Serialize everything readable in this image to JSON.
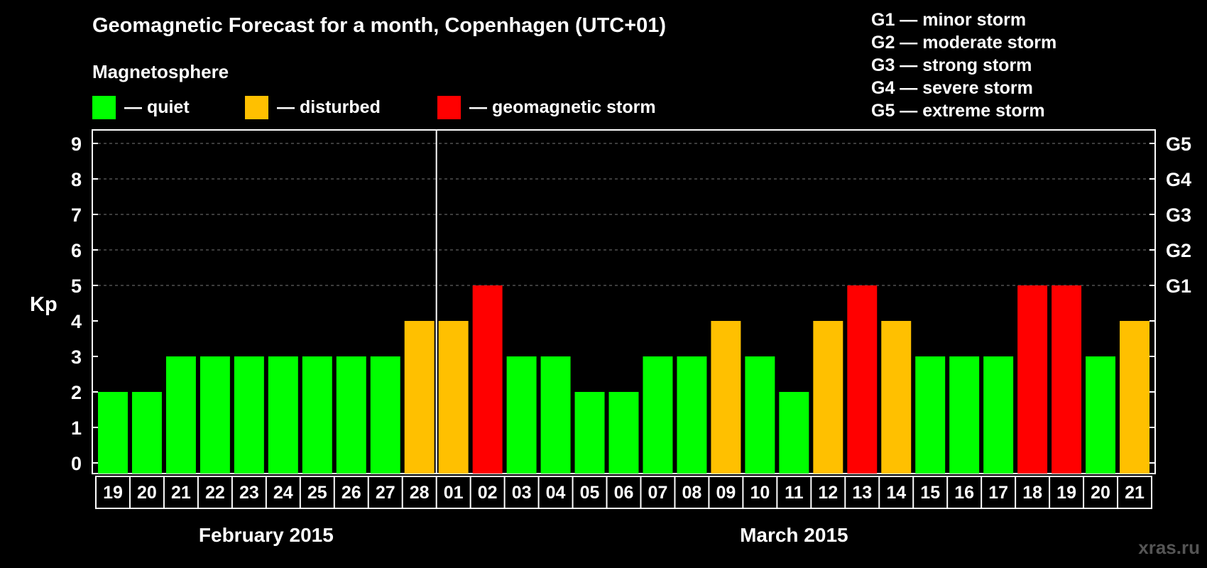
{
  "title": "Geomagnetic Forecast for a month, Copenhagen (UTC+01)",
  "magnetosphere": {
    "title": "Magnetosphere",
    "items": [
      {
        "label": "— quiet",
        "color": "#00ff00"
      },
      {
        "label": "— disturbed",
        "color": "#ffc000"
      },
      {
        "label": "— geomagnetic storm",
        "color": "#ff0000"
      }
    ]
  },
  "storm_legend": [
    "G1 — minor storm",
    "G2 — moderate storm",
    "G3 — strong storm",
    "G4 — severe storm",
    "G5 — extreme storm"
  ],
  "watermark": "xras.ru",
  "chart_data": {
    "type": "bar",
    "ylabel": "Kp",
    "ylim": [
      0,
      9
    ],
    "yticks": [
      "0",
      "1",
      "2",
      "3",
      "4",
      "5",
      "6",
      "7",
      "8",
      "9"
    ],
    "right_ticks": [
      {
        "kp": 5,
        "label": "G1"
      },
      {
        "kp": 6,
        "label": "G2"
      },
      {
        "kp": 7,
        "label": "G3"
      },
      {
        "kp": 8,
        "label": "G4"
      },
      {
        "kp": 9,
        "label": "G5"
      }
    ],
    "grid": "dashed horizontal at Kp 5-9",
    "categories": [
      "19",
      "20",
      "21",
      "22",
      "23",
      "24",
      "25",
      "26",
      "27",
      "28",
      "01",
      "02",
      "03",
      "04",
      "05",
      "06",
      "07",
      "08",
      "09",
      "10",
      "11",
      "12",
      "13",
      "14",
      "15",
      "16",
      "17",
      "18",
      "19",
      "20",
      "21"
    ],
    "values": [
      2,
      2,
      3,
      3,
      3,
      3,
      3,
      3,
      3,
      4,
      4,
      5,
      3,
      3,
      2,
      2,
      3,
      3,
      4,
      3,
      2,
      4,
      5,
      4,
      3,
      3,
      3,
      5,
      5,
      3,
      4
    ],
    "months": [
      {
        "label": "February 2015",
        "start_index": 0,
        "end_index": 9
      },
      {
        "label": "March 2015",
        "start_index": 10,
        "end_index": 30
      }
    ],
    "colors": {
      "quiet": "#00ff00",
      "disturbed": "#ffc000",
      "storm": "#ff0000"
    }
  }
}
